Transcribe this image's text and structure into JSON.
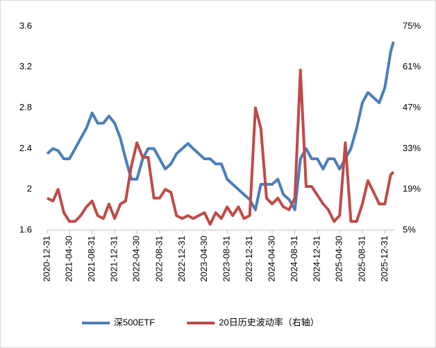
{
  "chart_data": {
    "type": "line",
    "x": [
      "2020-12-31",
      "2021-01-31",
      "2021-02-28",
      "2021-03-31",
      "2021-04-30",
      "2021-05-31",
      "2021-06-30",
      "2021-07-31",
      "2021-08-31",
      "2021-09-30",
      "2021-10-31",
      "2021-11-30",
      "2021-12-31",
      "2022-01-31",
      "2022-02-28",
      "2022-03-31",
      "2022-04-30",
      "2022-05-31",
      "2022-06-30",
      "2022-07-31",
      "2022-08-31",
      "2022-09-30",
      "2022-10-31",
      "2022-11-30",
      "2022-12-31",
      "2023-01-31",
      "2023-02-28",
      "2023-03-31",
      "2023-04-30",
      "2023-05-31",
      "2023-06-30",
      "2023-07-31",
      "2023-08-31",
      "2023-09-30",
      "2023-10-31",
      "2023-11-30",
      "2023-12-31",
      "2024-01-31",
      "2024-02-29",
      "2024-03-31",
      "2024-04-30",
      "2024-05-31",
      "2024-06-30",
      "2024-07-31",
      "2024-08-31",
      "2024-09-30",
      "2024-10-31",
      "2024-11-30",
      "2024-12-31",
      "2025-01-31",
      "2025-02-28",
      "2025-03-31",
      "2025-04-30",
      "2025-05-31",
      "2025-06-30",
      "2025-07-31",
      "2025-08-31",
      "2025-09-30",
      "2025-10-31",
      "2025-11-30",
      "2025-12-31",
      "2026-01-31",
      "2026-02-15"
    ],
    "series": [
      {
        "name": "深500ETF",
        "color": "#4a7ebb",
        "values": [
          2.35,
          2.4,
          2.38,
          2.3,
          2.3,
          2.4,
          2.5,
          2.6,
          2.75,
          2.65,
          2.65,
          2.72,
          2.65,
          2.5,
          2.3,
          2.1,
          2.1,
          2.3,
          2.4,
          2.4,
          2.3,
          2.2,
          2.25,
          2.35,
          2.4,
          2.45,
          2.4,
          2.35,
          2.3,
          2.3,
          2.25,
          2.25,
          2.1,
          2.05,
          2.0,
          1.95,
          1.9,
          1.8,
          2.05,
          2.05,
          2.05,
          2.1,
          1.95,
          1.9,
          1.8,
          2.3,
          2.4,
          2.3,
          2.3,
          2.2,
          2.3,
          2.3,
          2.2,
          2.3,
          2.4,
          2.6,
          2.85,
          2.95,
          2.9,
          2.85,
          3.0,
          3.35,
          3.45
        ]
      },
      {
        "name": "20日历史波动率（右轴）",
        "color": "#be4b48",
        "axis": "y2",
        "values": [
          16,
          15,
          19,
          11,
          8,
          8,
          10,
          13,
          15,
          10,
          9,
          14,
          9,
          14,
          15,
          27,
          35,
          30,
          30,
          16,
          16,
          19,
          18,
          10,
          9,
          10,
          9,
          10,
          11,
          7,
          11,
          9,
          13,
          10,
          13,
          9,
          10,
          47,
          40,
          16,
          14,
          16,
          13,
          12,
          16,
          60,
          20,
          20,
          17,
          14,
          12,
          8,
          10,
          35,
          8,
          8,
          14,
          22,
          18,
          14,
          14,
          24,
          25
        ]
      }
    ],
    "xlim": [
      "2020-12-31",
      "2026-02-20"
    ],
    "xticks": [
      "2020-12-31",
      "2021-04-30",
      "2021-08-31",
      "2021-12-31",
      "2022-04-30",
      "2022-08-31",
      "2022-12-31",
      "2023-04-30",
      "2023-08-31",
      "2023-12-31",
      "2024-04-30",
      "2024-08-31",
      "2024-12-31",
      "2025-04-30",
      "2025-08-31",
      "2025-12-31"
    ],
    "ylim": [
      1.6,
      3.6
    ],
    "yticks": [
      1.6,
      2.0,
      2.4,
      2.8,
      3.2,
      3.6
    ],
    "y2lim": [
      5,
      75
    ],
    "y2ticks": [
      {
        "value": 5,
        "label": "5%"
      },
      {
        "value": 19,
        "label": "19%"
      },
      {
        "value": 33,
        "label": "33%"
      },
      {
        "value": 47,
        "label": "47%"
      },
      {
        "value": 61,
        "label": "61%"
      },
      {
        "value": 75,
        "label": "75%"
      }
    ],
    "legend": "bottom"
  }
}
